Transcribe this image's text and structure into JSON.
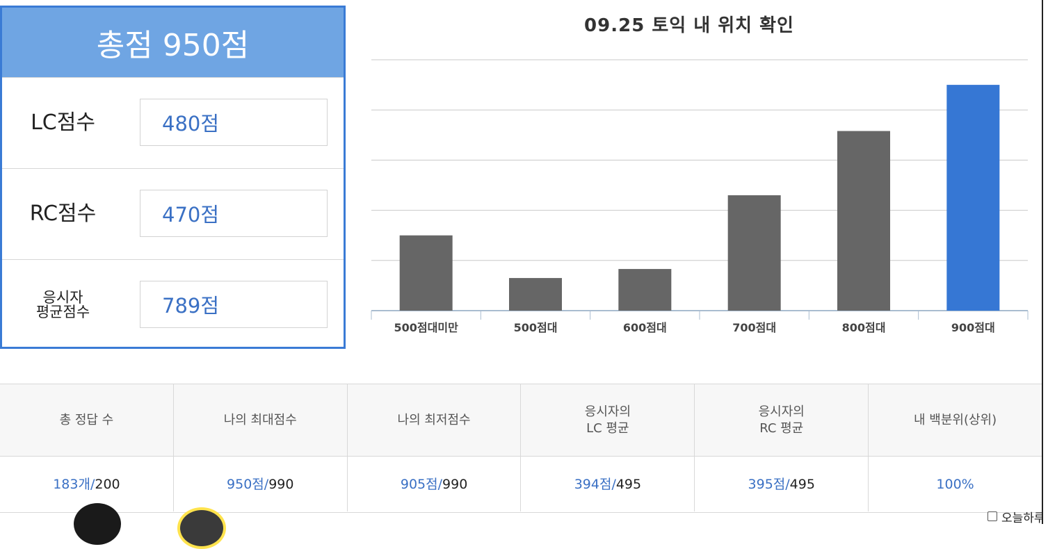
{
  "score_panel": {
    "total": "총점 950점",
    "rows": [
      {
        "label": "LC점수",
        "value": "480점"
      },
      {
        "label": "RC점수",
        "value": "470점"
      },
      {
        "label": "응시자\n평균점수",
        "value": "789점"
      }
    ]
  },
  "chart_data": {
    "type": "bar",
    "title": "09.25 토익 내 위치 확인",
    "categories": [
      "500점대미만",
      "500점대",
      "600점대",
      "700점대",
      "800점대",
      "900점대"
    ],
    "values": [
      15,
      6.5,
      8.3,
      23,
      35.8,
      45
    ],
    "ylim": [
      0,
      50
    ],
    "grid": true,
    "highlight_index": 5,
    "colors": {
      "default": "#666666",
      "highlight": "#3677d4",
      "grid": "#c8c8c8",
      "axis": "#a9bcd0"
    }
  },
  "stats": {
    "headers": [
      "총 정답 수",
      "나의 최대점수",
      "나의 최저점수",
      "응시자의\nLC 평균",
      "응시자의\nRC 평균",
      "내 백분위(상위)"
    ],
    "values": [
      {
        "mine": "183개",
        "sep": "/",
        "total": " 200"
      },
      {
        "mine": "950점",
        "sep": "/",
        "total": " 990"
      },
      {
        "mine": "905점",
        "sep": "/",
        "total": " 990"
      },
      {
        "mine": "394점",
        "sep": "/",
        "total": " 495"
      },
      {
        "mine": "395점",
        "sep": "/",
        "total": " 495"
      },
      {
        "mine": "100%",
        "sep": "",
        "total": ""
      }
    ]
  },
  "popup": {
    "checkbox_label": "오늘하루"
  }
}
